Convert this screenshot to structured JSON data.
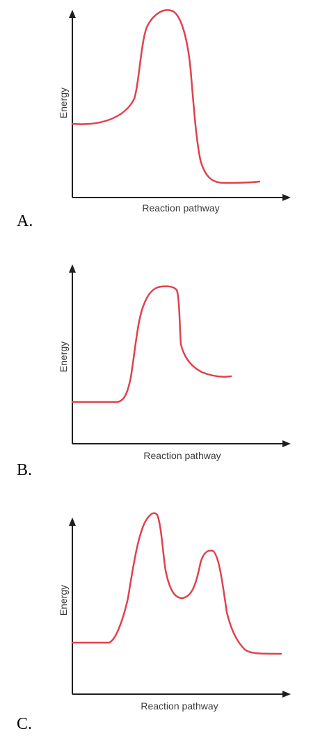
{
  "colors": {
    "curve": "#e0414c",
    "axis": "#1f1f1f",
    "text": "#3a3a3a"
  },
  "panels": [
    {
      "option": "A.",
      "ylabel": "Energy",
      "xlabel": "Reaction pathway",
      "curve": "single-peak"
    },
    {
      "option": "B.",
      "ylabel": "Energy",
      "xlabel": "Reaction pathway",
      "curve": "single-peak"
    },
    {
      "option": "C.",
      "ylabel": "Energy",
      "xlabel": "Reaction pathway",
      "curve": "two-peak"
    }
  ]
}
